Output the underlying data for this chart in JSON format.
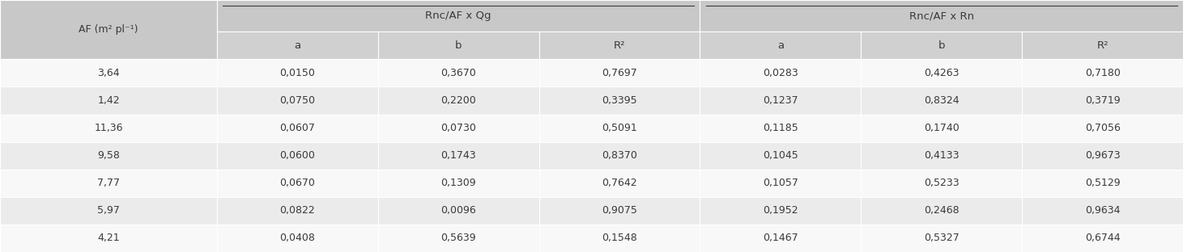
{
  "col_labels": [
    "AF (m² pl⁻¹)",
    "a",
    "b",
    "R²",
    "a",
    "b",
    "R²"
  ],
  "group_headers": [
    "Rnc/AF x Qg",
    "Rnc/AF x Rn"
  ],
  "rows": [
    [
      "3,64",
      "0,0150",
      "0,3670",
      "0,7697",
      "0,0283",
      "0,4263",
      "0,7180"
    ],
    [
      "1,42",
      "0,0750",
      "0,2200",
      "0,3395",
      "0,1237",
      "0,8324",
      "0,3719"
    ],
    [
      "11,36",
      "0,0607",
      "0,0730",
      "0,5091",
      "0,1185",
      "0,1740",
      "0,7056"
    ],
    [
      "9,58",
      "0,0600",
      "0,1743",
      "0,8370",
      "0,1045",
      "0,4133",
      "0,9673"
    ],
    [
      "7,77",
      "0,0670",
      "0,1309",
      "0,7642",
      "0,1057",
      "0,5233",
      "0,5129"
    ],
    [
      "5,97",
      "0,0822",
      "0,0096",
      "0,9075",
      "0,1952",
      "0,2468",
      "0,9634"
    ],
    [
      "4,21",
      "0,0408",
      "0,5639",
      "0,1548",
      "0,1467",
      "0,5327",
      "0,6744"
    ]
  ],
  "header_bg": "#c8c8c8",
  "subheader_bg": "#d0d0d0",
  "row_bg_even": "#ebebeb",
  "row_bg_odd": "#f8f8f8",
  "text_color": "#3a3a3a",
  "figsize": [
    14.61,
    3.12
  ],
  "dpi": 100
}
